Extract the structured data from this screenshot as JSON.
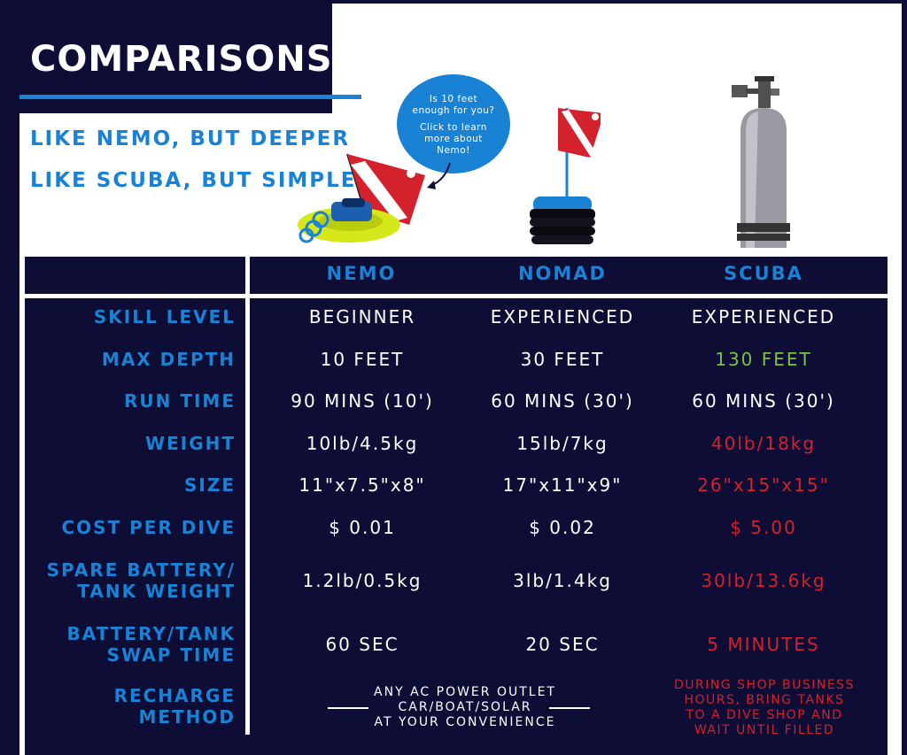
{
  "header": {
    "title": "COMPARISONS",
    "taglines": [
      "LIKE NEMO, BUT DEEPER",
      "LIKE SCUBA, BUT SIMPLE"
    ]
  },
  "bubble": {
    "lines": [
      "Is 10 feet",
      "enough for you?",
      "Click to learn",
      "more about",
      "Nemo!"
    ]
  },
  "columns": [
    "NEMO",
    "NOMAD",
    "SCUBA"
  ],
  "rows": [
    {
      "label": [
        "SKILL LEVEL"
      ],
      "values": [
        "BEGINNER",
        "EXPERIENCED",
        "EXPERIENCED"
      ],
      "scuba_color": "#ffffff"
    },
    {
      "label": [
        "MAX DEPTH"
      ],
      "values": [
        "10 FEET",
        "30 FEET",
        "130 FEET"
      ],
      "scuba_color": "#7dc242"
    },
    {
      "label": [
        "RUN TIME"
      ],
      "values": [
        "90 MINS (10')",
        "60 MINS (30')",
        "60 MINS (30')"
      ],
      "scuba_color": "#ffffff"
    },
    {
      "label": [
        "WEIGHT"
      ],
      "values": [
        "10lb/4.5kg",
        "15lb/7kg",
        "40lb/18kg"
      ],
      "scuba_color": "#d3222b"
    },
    {
      "label": [
        "SIZE"
      ],
      "values": [
        "11\"x7.5\"x8\"",
        "17\"x11\"x9\"",
        "26\"x15\"x15\""
      ],
      "scuba_color": "#d3222b"
    },
    {
      "label": [
        "COST PER DIVE"
      ],
      "values": [
        "$ 0.01",
        "$ 0.02",
        "$ 5.00"
      ],
      "scuba_color": "#d3222b"
    },
    {
      "label": [
        "SPARE BATTERY/",
        "TANK WEIGHT"
      ],
      "values": [
        "1.2lb/0.5kg",
        "3lb/1.4kg",
        "30lb/13.6kg"
      ],
      "scuba_color": "#d3222b"
    },
    {
      "label": [
        "BATTERY/TANK",
        "SWAP TIME"
      ],
      "values": [
        "60 SEC",
        "20 SEC",
        "5 MINUTES"
      ],
      "scuba_color": "#d3222b"
    }
  ],
  "recharge": {
    "label": [
      "RECHARGE",
      "METHOD"
    ],
    "nemo_nomad": [
      "ANY AC POWER OUTLET",
      "CAR/BOAT/SOLAR",
      "AT YOUR CONVENIENCE"
    ],
    "scuba": [
      "DURING SHOP BUSINESS",
      "HOURS, BRING TANKS",
      "TO A DIVE SHOP AND",
      "WAIT UNTIL FILLED"
    ]
  },
  "colors": {
    "navy": "#0d0d36",
    "blue": "#1a82d4",
    "red": "#d3222b",
    "green": "#7dc242"
  }
}
